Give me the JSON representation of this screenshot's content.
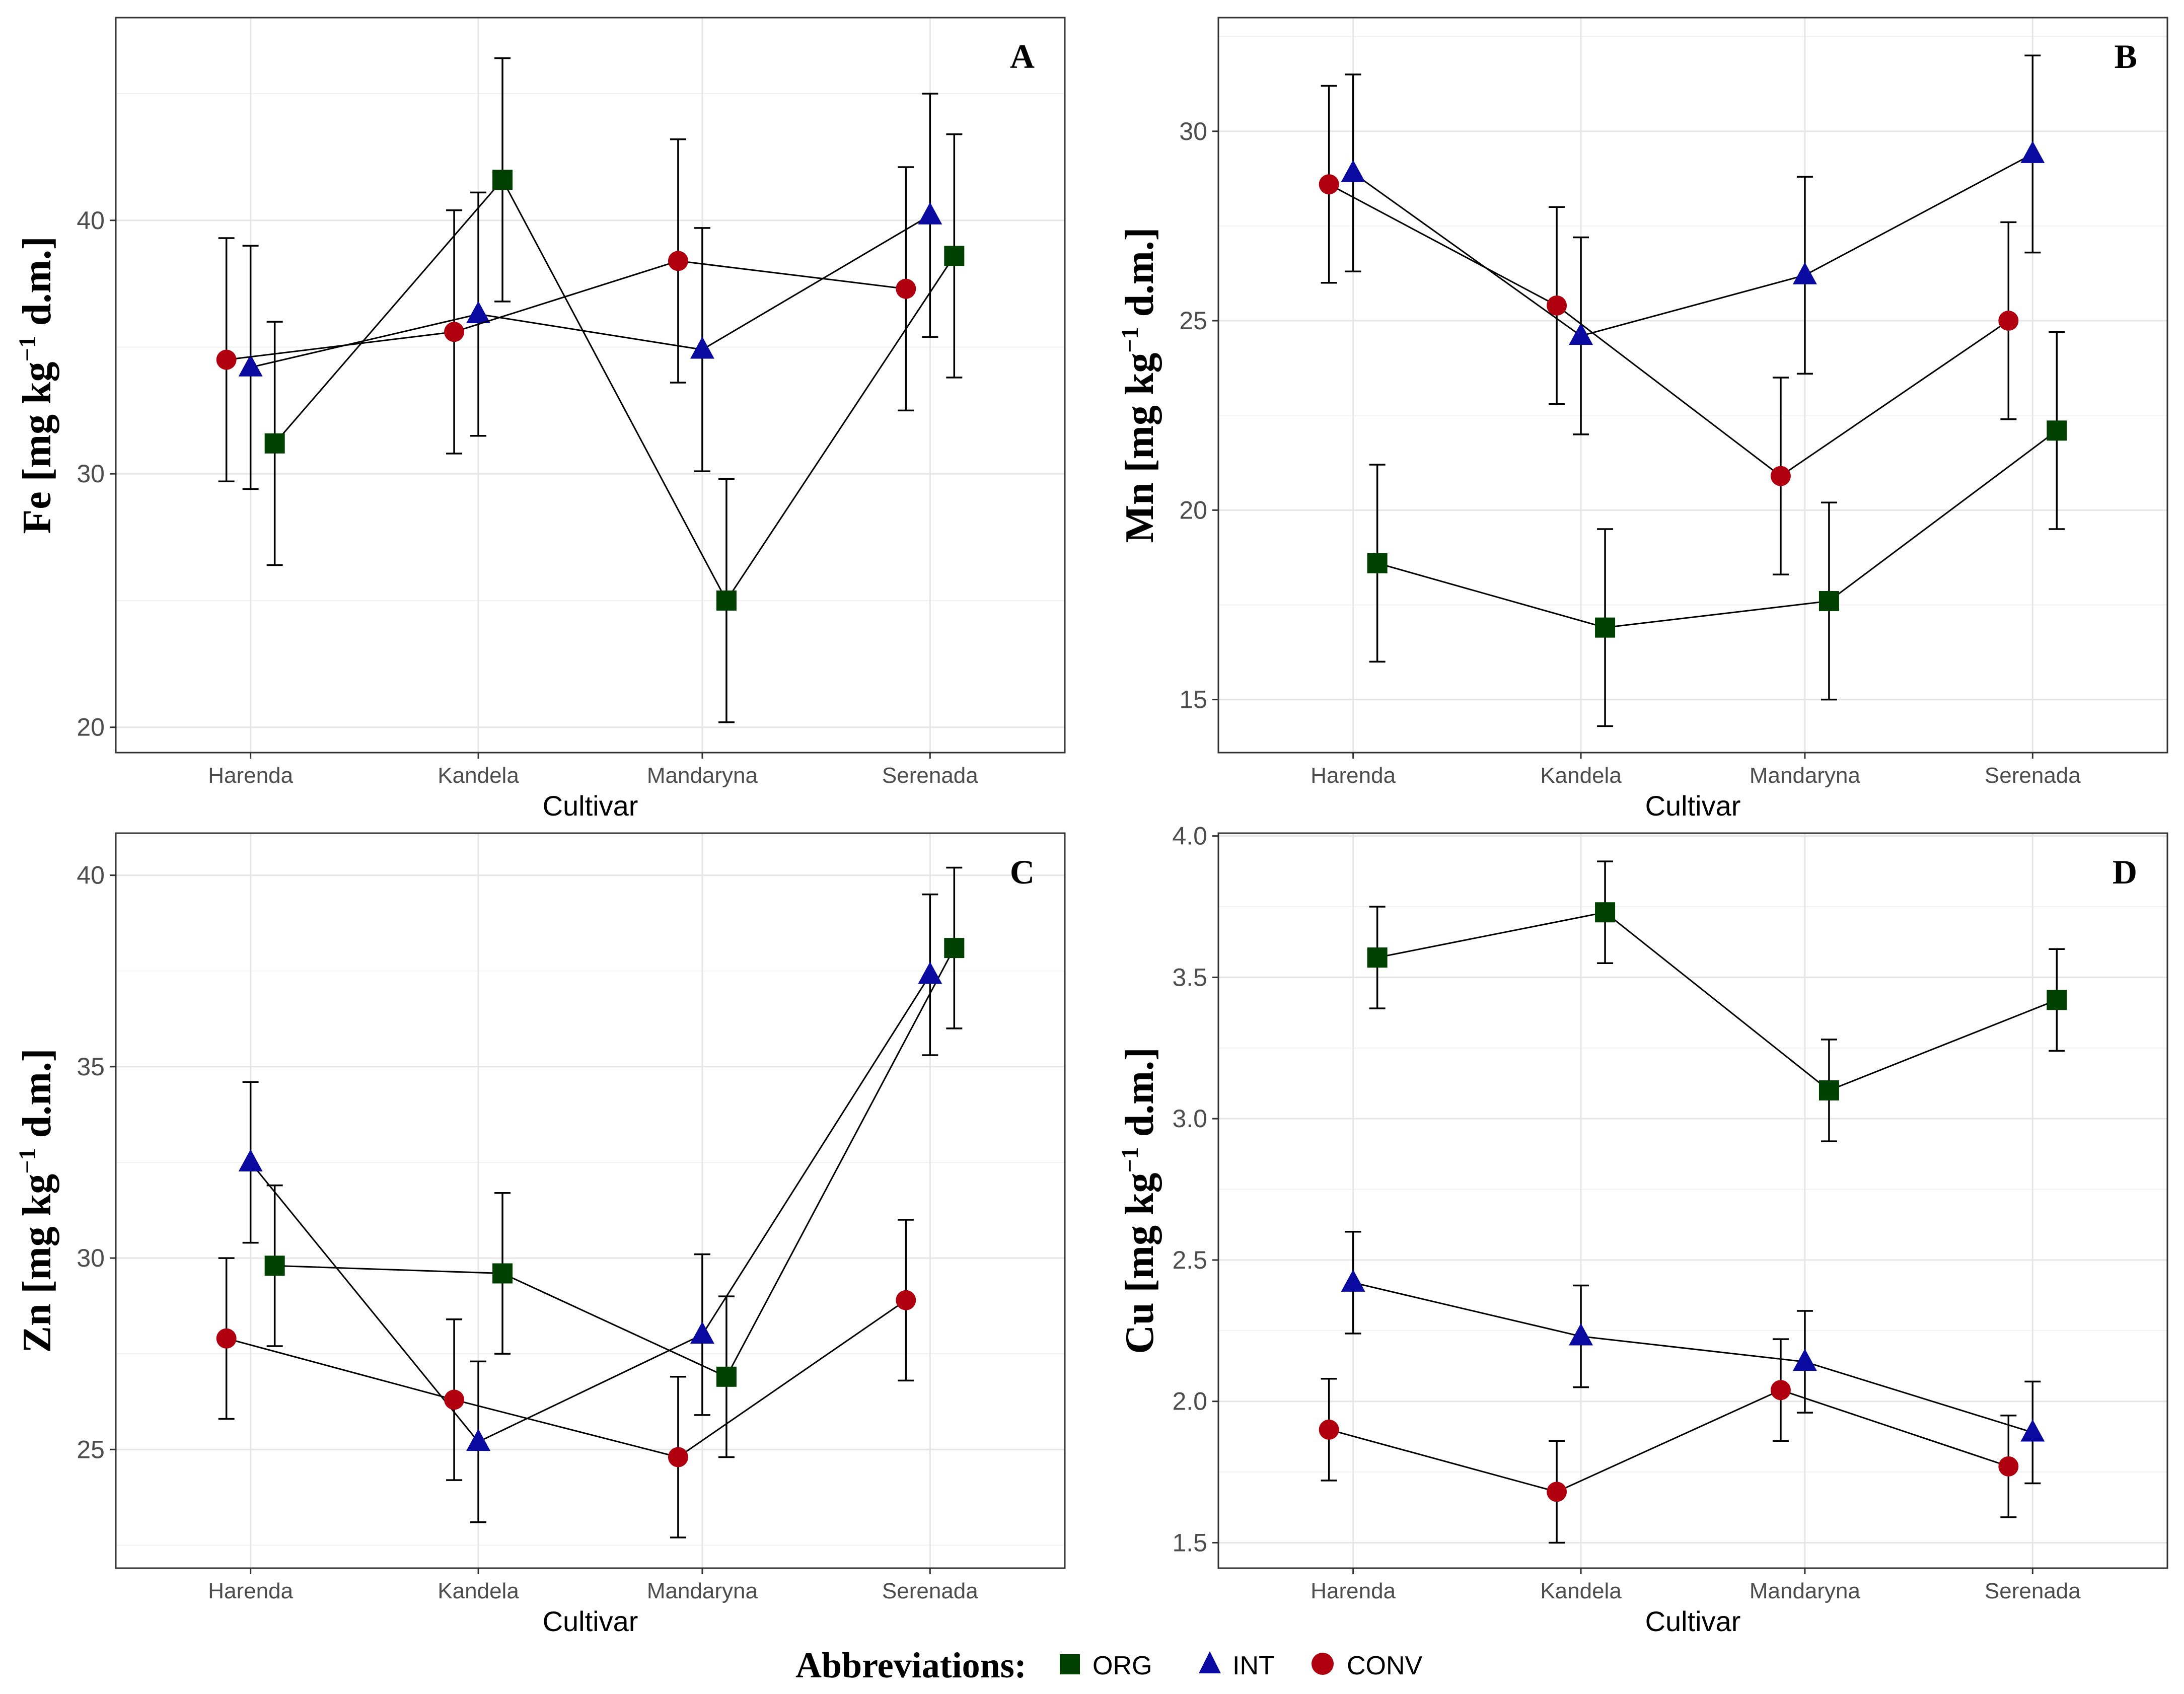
{
  "legend": {
    "title": "Abbreviations:",
    "items": [
      {
        "key": "ORG",
        "label": "ORG",
        "color": "#004000",
        "shape": "square"
      },
      {
        "key": "INT",
        "label": "INT",
        "color": "#0a0aa0",
        "shape": "triangle"
      },
      {
        "key": "CONV",
        "label": "CONV",
        "color": "#b00010",
        "shape": "circle"
      }
    ]
  },
  "chart_data": [
    {
      "panel": "A",
      "type": "line",
      "xlabel": "Cultivar",
      "ylabel": {
        "element": "Fe",
        "unit_pre": "[mg kg",
        "unit_sup": "−1",
        "unit_post": " d.m.]"
      },
      "categories": [
        "Harenda",
        "Kandela",
        "Mandaryna",
        "Serenada"
      ],
      "ylim": [
        19,
        48
      ],
      "yticks": [
        20,
        30,
        40
      ],
      "series": [
        {
          "name": "ORG",
          "values": [
            31.2,
            41.6,
            25.0,
            38.6
          ],
          "err": [
            4.8,
            4.8,
            4.8,
            4.8
          ]
        },
        {
          "name": "INT",
          "values": [
            34.2,
            36.3,
            34.9,
            40.2
          ],
          "err": [
            4.8,
            4.8,
            4.8,
            4.8
          ]
        },
        {
          "name": "CONV",
          "values": [
            34.5,
            35.6,
            38.4,
            37.3
          ],
          "err": [
            4.8,
            4.8,
            4.8,
            4.8
          ]
        }
      ]
    },
    {
      "panel": "B",
      "type": "line",
      "xlabel": "Cultivar",
      "ylabel": {
        "element": "Mn",
        "unit_pre": "[mg kg",
        "unit_sup": "−1",
        "unit_post": " d.m.]"
      },
      "categories": [
        "Harenda",
        "Kandela",
        "Mandaryna",
        "Serenada"
      ],
      "ylim": [
        13.6,
        33.0
      ],
      "yticks": [
        15,
        20,
        25,
        30
      ],
      "series": [
        {
          "name": "ORG",
          "values": [
            18.6,
            16.9,
            17.6,
            22.1
          ],
          "err": [
            2.6,
            2.6,
            2.6,
            2.6
          ]
        },
        {
          "name": "INT",
          "values": [
            28.9,
            24.6,
            26.2,
            29.4
          ],
          "err": [
            2.6,
            2.6,
            2.6,
            2.6
          ]
        },
        {
          "name": "CONV",
          "values": [
            28.6,
            25.4,
            20.9,
            25.0
          ],
          "err": [
            2.6,
            2.6,
            2.6,
            2.6
          ]
        }
      ]
    },
    {
      "panel": "C",
      "type": "line",
      "xlabel": "Cultivar",
      "ylabel": {
        "element": "Zn",
        "unit_pre": "[mg kg",
        "unit_sup": "−1",
        "unit_post": " d.m.]"
      },
      "categories": [
        "Harenda",
        "Kandela",
        "Mandaryna",
        "Serenada"
      ],
      "ylim": [
        21.9,
        41.1
      ],
      "yticks": [
        25,
        30,
        35,
        40
      ],
      "series": [
        {
          "name": "ORG",
          "values": [
            29.8,
            29.6,
            26.9,
            38.1
          ],
          "err": [
            2.1,
            2.1,
            2.1,
            2.1
          ]
        },
        {
          "name": "INT",
          "values": [
            32.5,
            25.2,
            28.0,
            37.4
          ],
          "err": [
            2.1,
            2.1,
            2.1,
            2.1
          ]
        },
        {
          "name": "CONV",
          "values": [
            27.9,
            26.3,
            24.8,
            28.9
          ],
          "err": [
            2.1,
            2.1,
            2.1,
            2.1
          ]
        }
      ]
    },
    {
      "panel": "D",
      "type": "line",
      "xlabel": "Cultivar",
      "ylabel": {
        "element": "Cu",
        "unit_pre": "[mg kg",
        "unit_sup": "−1",
        "unit_post": " d.m.]"
      },
      "categories": [
        "Harenda",
        "Kandela",
        "Mandaryna",
        "Serenada"
      ],
      "ylim": [
        1.41,
        4.01
      ],
      "yticks": [
        "1.5",
        "2.0",
        "2.5",
        "3.0",
        "3.5",
        "4.0"
      ],
      "series": [
        {
          "name": "ORG",
          "values": [
            3.57,
            3.73,
            3.1,
            3.42
          ],
          "err": [
            0.18,
            0.18,
            0.18,
            0.18
          ]
        },
        {
          "name": "INT",
          "values": [
            2.42,
            2.23,
            2.14,
            1.89
          ],
          "err": [
            0.18,
            0.18,
            0.18,
            0.18
          ]
        },
        {
          "name": "CONV",
          "values": [
            1.9,
            1.68,
            2.04,
            1.77
          ],
          "err": [
            0.18,
            0.18,
            0.18,
            0.18
          ]
        }
      ]
    }
  ]
}
